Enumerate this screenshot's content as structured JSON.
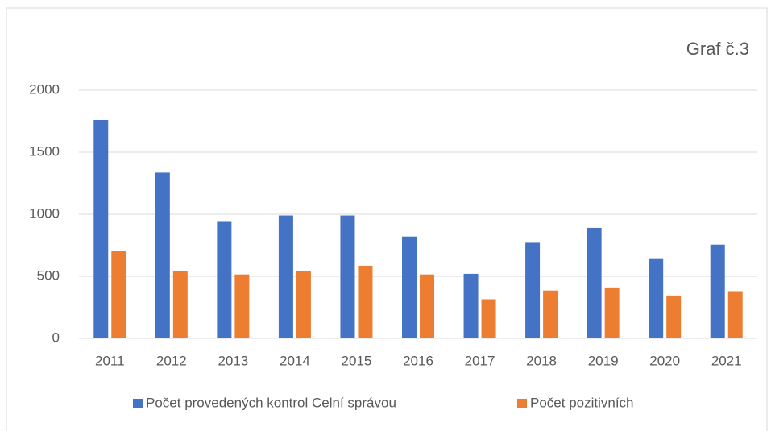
{
  "chart_data": {
    "type": "bar",
    "title": "Graf č.3",
    "categories": [
      "2011",
      "2012",
      "2013",
      "2014",
      "2015",
      "2016",
      "2017",
      "2018",
      "2019",
      "2020",
      "2021"
    ],
    "series": [
      {
        "name": "Počet provedených kontrol Celní správou",
        "color": "#4472c4",
        "values": [
          1760,
          1335,
          945,
          990,
          990,
          820,
          520,
          770,
          890,
          645,
          755
        ]
      },
      {
        "name": "Počet pozitivních",
        "color": "#ed7d31",
        "values": [
          705,
          545,
          515,
          545,
          585,
          515,
          315,
          385,
          410,
          345,
          380
        ]
      }
    ],
    "ylim": [
      0,
      2000
    ],
    "yticks": [
      0,
      500,
      1000,
      1500,
      2000
    ],
    "grid": true,
    "legend": "bottom"
  }
}
